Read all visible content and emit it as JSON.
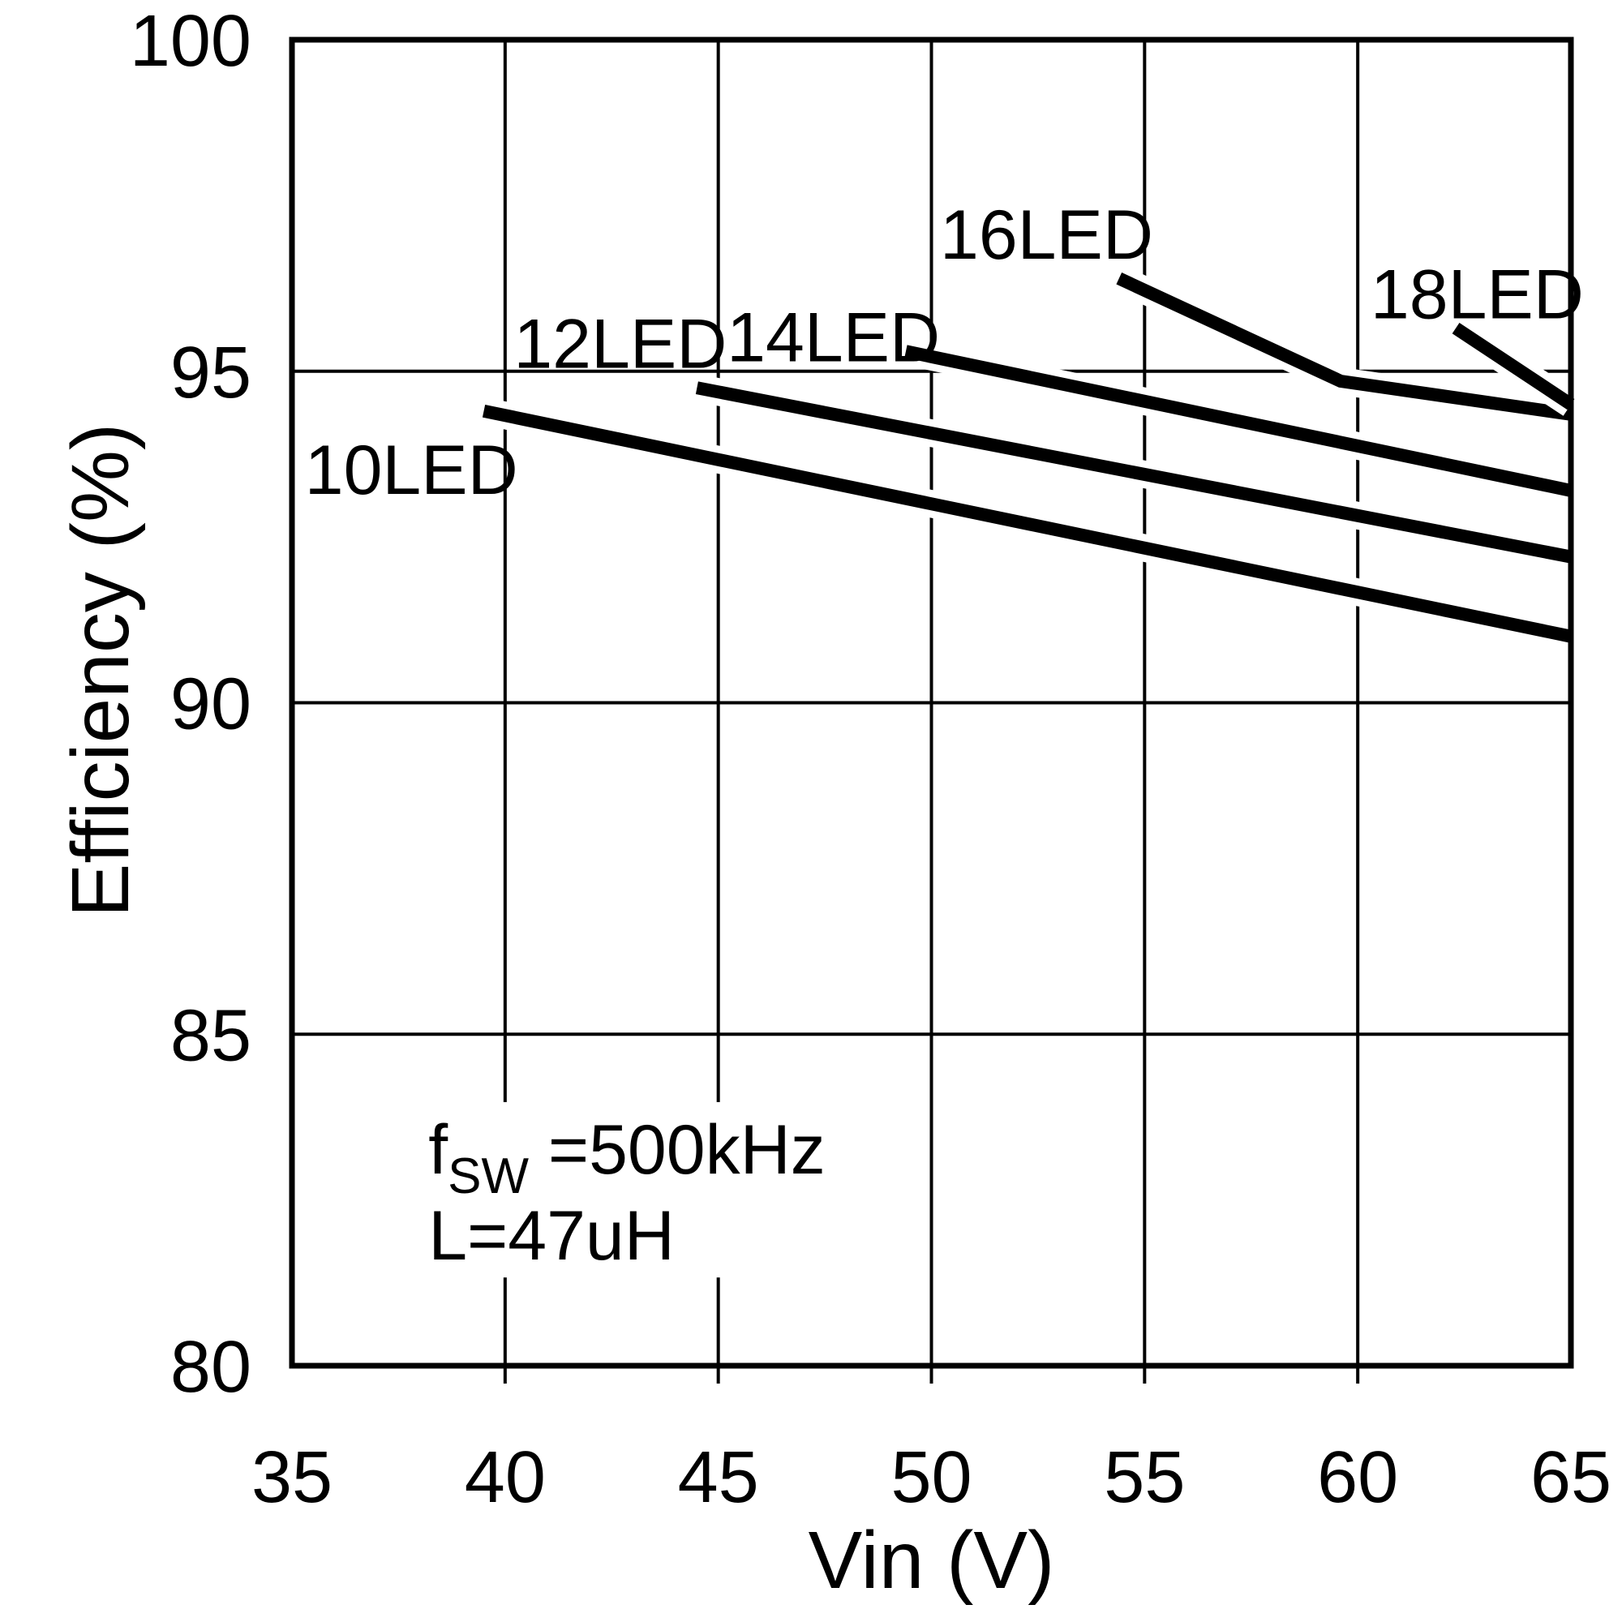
{
  "page": {
    "background": "#ffffff",
    "foreground": "#000000"
  },
  "chart_data": {
    "type": "line",
    "title": "",
    "xlabel": "Vin (V)",
    "ylabel": "Efficiency (%)",
    "xlim": [
      35,
      65
    ],
    "ylim": [
      80,
      100
    ],
    "xticks": [
      35,
      40,
      45,
      50,
      55,
      60,
      65
    ],
    "yticks": [
      80,
      85,
      90,
      95,
      100
    ],
    "grid": true,
    "legend_position": "inline-labels",
    "line_color": "#000000",
    "annotation": {
      "line1_main": "f",
      "line1_sub": "SW",
      "line1_rest": " =500kHz",
      "line2": "L=47uH",
      "x": 38.2,
      "y_line1": 82.9,
      "y_line2": 81.6
    },
    "series": [
      {
        "name": "10LED",
        "x": [
          39.5,
          65
        ],
        "y": [
          94.4,
          91.0
        ],
        "label": "10LED",
        "label_pos": {
          "x": 35.3,
          "y": 93.15
        }
      },
      {
        "name": "12LED",
        "x": [
          44.5,
          65
        ],
        "y": [
          94.75,
          92.2
        ],
        "label": "12LED",
        "label_pos": {
          "x": 40.2,
          "y": 95.05
        }
      },
      {
        "name": "14LED",
        "x": [
          49.4,
          65
        ],
        "y": [
          95.3,
          93.2
        ],
        "label": "14LED",
        "label_pos": {
          "x": 45.2,
          "y": 95.15
        }
      },
      {
        "name": "16LED",
        "x": [
          54.4,
          59.6,
          65
        ],
        "y": [
          96.4,
          94.85,
          94.35
        ],
        "label": "16LED",
        "label_pos": {
          "x": 50.2,
          "y": 96.7
        }
      },
      {
        "name": "18LED",
        "x": [
          62.3,
          65
        ],
        "y": [
          95.65,
          94.5
        ],
        "label": "18LED",
        "label_pos": {
          "x": 60.3,
          "y": 95.8
        }
      }
    ]
  }
}
